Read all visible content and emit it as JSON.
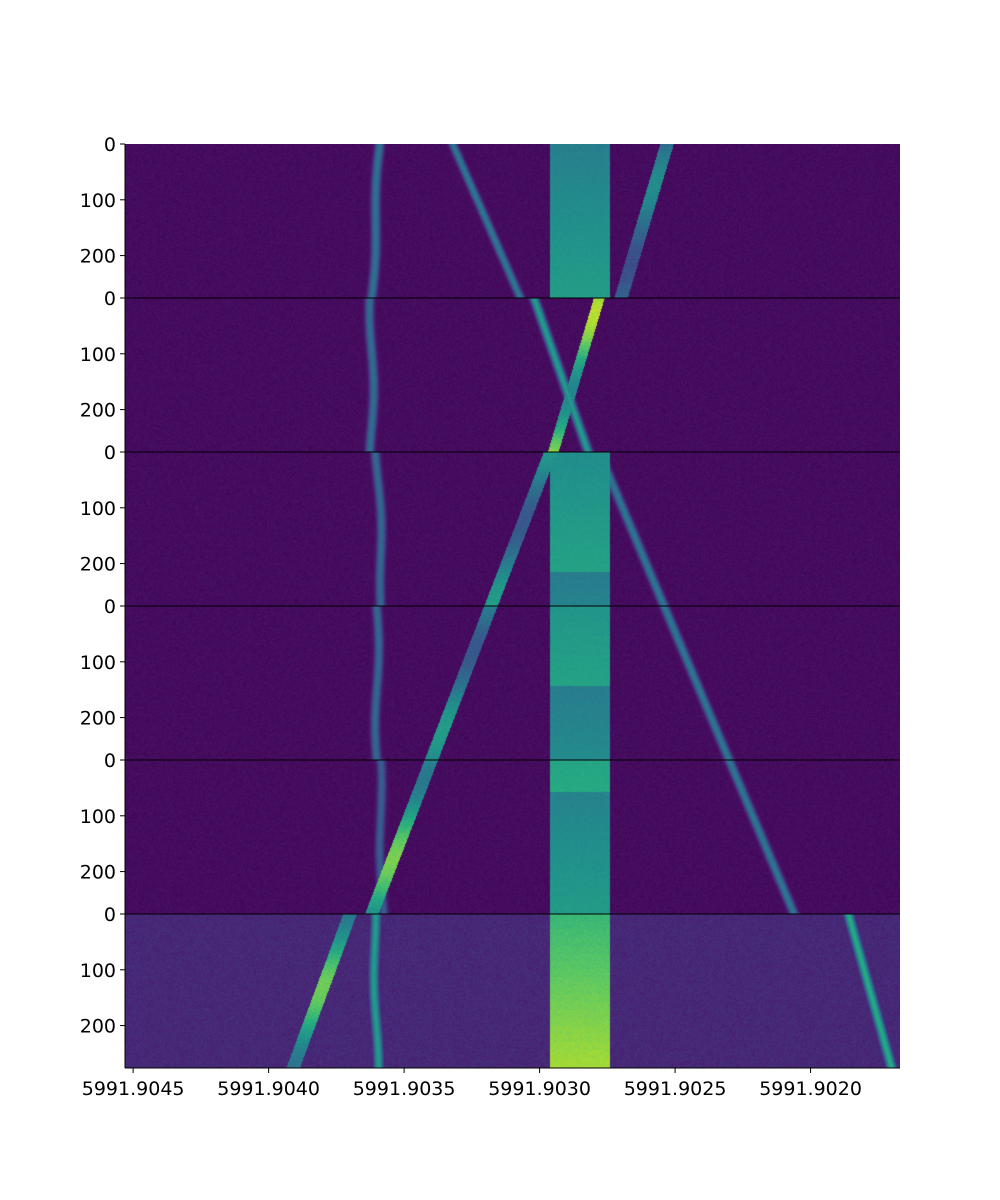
{
  "chart_data": {
    "type": "heatmap",
    "colormap": "viridis",
    "colors": {
      "low": "#440154",
      "mid": "#21918c",
      "high": "#fde725",
      "divider": "#000000"
    },
    "x_axis": {
      "reversed": true,
      "range": [
        5991.90453,
        5991.90167
      ],
      "ticks": [
        5991.9045,
        5991.904,
        5991.9035,
        5991.903,
        5991.9025,
        5991.902
      ],
      "tick_labels": [
        "5991.9045",
        "5991.9040",
        "5991.9035",
        "5991.9030",
        "5991.9025",
        "5991.9020"
      ]
    },
    "y_axis": {
      "panel_range": [
        0,
        276
      ],
      "ticks": [
        0,
        100,
        200
      ],
      "tick_labels": [
        "0",
        "100",
        "200"
      ]
    },
    "panels": [
      {
        "index": 0,
        "rows": 276,
        "features": [
          {
            "kind": "line",
            "x_start": 5991.90359,
            "x_end": 5991.90362,
            "wiggle": 6e-06,
            "width": 3e-05,
            "intensity": 0.38
          },
          {
            "kind": "line",
            "x_start": 5991.90332,
            "x_end": 5991.90307,
            "width": 2.8e-05,
            "intensity": 0.4
          },
          {
            "kind": "band",
            "x_start": 5991.90253,
            "x_end": 5991.9027,
            "width": 5e-05,
            "intensity": 0.48
          },
          {
            "kind": "block",
            "x_range": [
              5991.90296,
              5991.90274
            ],
            "intensity": 0.6
          }
        ]
      },
      {
        "index": 1,
        "rows": 276,
        "features": [
          {
            "kind": "line",
            "x_start": 5991.90362,
            "x_end": 5991.90362,
            "wiggle": 8e-06,
            "width": 3e-05,
            "intensity": 0.36
          },
          {
            "kind": "band",
            "x_start": 5991.90278,
            "x_end": 5991.90295,
            "width": 4e-05,
            "intensity": 0.9
          },
          {
            "kind": "line",
            "x_start": 5991.90302,
            "x_end": 5991.90282,
            "width": 2.8e-05,
            "intensity": 0.55
          }
        ]
      },
      {
        "index": 2,
        "rows": 276,
        "features": [
          {
            "kind": "line",
            "x_start": 5991.9036,
            "x_end": 5991.90358,
            "wiggle": 7e-06,
            "width": 3e-05,
            "intensity": 0.34
          },
          {
            "kind": "band",
            "x_start": 5991.90296,
            "x_end": 5991.90318,
            "width": 5e-05,
            "intensity": 0.55
          },
          {
            "kind": "line",
            "x_start": 5991.90278,
            "x_end": 5991.90254,
            "width": 3e-05,
            "intensity": 0.4
          },
          {
            "kind": "block",
            "x_range": [
              5991.90296,
              5991.90274
            ],
            "intensity": 0.58
          }
        ]
      },
      {
        "index": 3,
        "rows": 276,
        "features": [
          {
            "kind": "line",
            "x_start": 5991.9036,
            "x_end": 5991.9036,
            "wiggle": 7e-06,
            "width": 3e-05,
            "intensity": 0.34
          },
          {
            "kind": "band",
            "x_start": 5991.90318,
            "x_end": 5991.9034,
            "width": 5e-05,
            "intensity": 0.55
          },
          {
            "kind": "line",
            "x_start": 5991.90254,
            "x_end": 5991.9023,
            "width": 3e-05,
            "intensity": 0.4
          },
          {
            "kind": "block",
            "x_range": [
              5991.90296,
              5991.90274
            ],
            "intensity": 0.58
          }
        ]
      },
      {
        "index": 4,
        "rows": 276,
        "features": [
          {
            "kind": "line",
            "x_start": 5991.90359,
            "x_end": 5991.90358,
            "wiggle": 6e-06,
            "width": 3e-05,
            "intensity": 0.3
          },
          {
            "kind": "band",
            "x_start": 5991.9034,
            "x_end": 5991.90362,
            "width": 5e-05,
            "intensity": 0.8
          },
          {
            "kind": "line",
            "x_start": 5991.9023,
            "x_end": 5991.90206,
            "width": 3e-05,
            "intensity": 0.4
          },
          {
            "kind": "block",
            "x_range": [
              5991.90296,
              5991.90274
            ],
            "intensity": 0.62
          }
        ]
      },
      {
        "index": 5,
        "rows": 276,
        "features": [
          {
            "kind": "line",
            "x_start": 5991.90361,
            "x_end": 5991.9036,
            "wiggle": 6e-06,
            "width": 3e-05,
            "intensity": 0.55
          },
          {
            "kind": "band",
            "x_start": 5991.9037,
            "x_end": 5991.90391,
            "width": 5e-05,
            "intensity": 0.78
          },
          {
            "kind": "line",
            "x_start": 5991.90186,
            "x_end": 5991.9017,
            "width": 3e-05,
            "intensity": 0.62
          },
          {
            "kind": "block",
            "x_range": [
              5991.90296,
              5991.90274
            ],
            "intensity": 0.92
          }
        ]
      }
    ]
  }
}
